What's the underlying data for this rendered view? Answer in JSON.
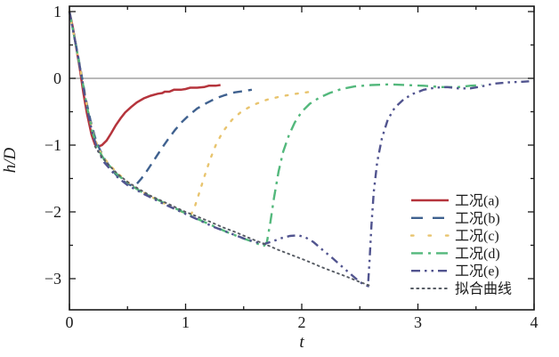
{
  "chart_data": {
    "type": "line",
    "title": "",
    "xlabel": "t",
    "ylabel": "h/D",
    "xlim": [
      0,
      4
    ],
    "ylim": [
      -3.47,
      1.08
    ],
    "grid": false,
    "zero_line": 0,
    "zero_line_color": "#909090",
    "frame_color": "#1a1a1a",
    "legend_position": "right-middle",
    "xticks": [
      {
        "value": 0,
        "label": "0"
      },
      {
        "value": 1,
        "label": "1"
      },
      {
        "value": 2,
        "label": "2"
      },
      {
        "value": 3,
        "label": "3"
      },
      {
        "value": 4,
        "label": "4"
      }
    ],
    "yticks": [
      {
        "value": 1,
        "label": "1"
      },
      {
        "value": 0,
        "label": "0"
      },
      {
        "value": -1,
        "label": "−1"
      },
      {
        "value": -2,
        "label": "−2"
      },
      {
        "value": -3,
        "label": "−3"
      }
    ],
    "xminor": [
      0.5,
      1.5,
      2.5,
      3.5
    ],
    "yminor": [
      0.5,
      -0.5,
      -1.5,
      -2.5
    ],
    "series": [
      {
        "name": "工况(a)",
        "color": "#b5343c",
        "style": "solid",
        "points": [
          [
            0,
            1.0
          ],
          [
            0.03,
            0.76
          ],
          [
            0.06,
            0.45
          ],
          [
            0.09,
            0.14
          ],
          [
            0.12,
            -0.22
          ],
          [
            0.15,
            -0.52
          ],
          [
            0.17,
            -0.68
          ],
          [
            0.19,
            -0.84
          ],
          [
            0.205,
            -0.92
          ],
          [
            0.22,
            -0.99
          ],
          [
            0.25,
            -1.02
          ],
          [
            0.28,
            -1.0
          ],
          [
            0.32,
            -0.93
          ],
          [
            0.36,
            -0.82
          ],
          [
            0.4,
            -0.7
          ],
          [
            0.44,
            -0.6
          ],
          [
            0.48,
            -0.51
          ],
          [
            0.53,
            -0.43
          ],
          [
            0.58,
            -0.36
          ],
          [
            0.64,
            -0.3
          ],
          [
            0.7,
            -0.26
          ],
          [
            0.76,
            -0.23
          ],
          [
            0.8,
            -0.22
          ],
          [
            0.82,
            -0.2
          ],
          [
            0.86,
            -0.2
          ],
          [
            0.9,
            -0.17
          ],
          [
            0.96,
            -0.17
          ],
          [
            1.0,
            -0.16
          ],
          [
            1.04,
            -0.14
          ],
          [
            1.1,
            -0.14
          ],
          [
            1.16,
            -0.13
          ],
          [
            1.2,
            -0.11
          ],
          [
            1.26,
            -0.11
          ],
          [
            1.3,
            -0.1
          ]
        ]
      },
      {
        "name": "工况(b)",
        "color": "#3f618f",
        "style": "dashed",
        "points": [
          [
            0,
            1.0
          ],
          [
            0.05,
            0.56
          ],
          [
            0.1,
            0.1
          ],
          [
            0.14,
            -0.3
          ],
          [
            0.18,
            -0.62
          ],
          [
            0.22,
            -0.88
          ],
          [
            0.26,
            -1.06
          ],
          [
            0.3,
            -1.2
          ],
          [
            0.35,
            -1.33
          ],
          [
            0.4,
            -1.44
          ],
          [
            0.45,
            -1.52
          ],
          [
            0.5,
            -1.58
          ],
          [
            0.54,
            -1.61
          ],
          [
            0.58,
            -1.58
          ],
          [
            0.62,
            -1.5
          ],
          [
            0.67,
            -1.38
          ],
          [
            0.73,
            -1.22
          ],
          [
            0.79,
            -1.06
          ],
          [
            0.85,
            -0.91
          ],
          [
            0.91,
            -0.77
          ],
          [
            0.97,
            -0.65
          ],
          [
            1.03,
            -0.55
          ],
          [
            1.1,
            -0.45
          ],
          [
            1.18,
            -0.37
          ],
          [
            1.26,
            -0.3
          ],
          [
            1.34,
            -0.25
          ],
          [
            1.42,
            -0.21
          ],
          [
            1.5,
            -0.19
          ],
          [
            1.57,
            -0.17
          ]
        ]
      },
      {
        "name": "工况(c)",
        "color": "#e8c46e",
        "style": "dotted",
        "points": [
          [
            0,
            1.0
          ],
          [
            0.05,
            0.55
          ],
          [
            0.1,
            0.08
          ],
          [
            0.15,
            -0.4
          ],
          [
            0.2,
            -0.8
          ],
          [
            0.25,
            -1.05
          ],
          [
            0.3,
            -1.2
          ],
          [
            0.4,
            -1.4
          ],
          [
            0.5,
            -1.55
          ],
          [
            0.6,
            -1.67
          ],
          [
            0.7,
            -1.77
          ],
          [
            0.8,
            -1.86
          ],
          [
            0.9,
            -1.95
          ],
          [
            1.0,
            -2.02
          ],
          [
            1.05,
            -2.03
          ],
          [
            1.08,
            -1.92
          ],
          [
            1.12,
            -1.7
          ],
          [
            1.16,
            -1.48
          ],
          [
            1.21,
            -1.22
          ],
          [
            1.26,
            -1.0
          ],
          [
            1.32,
            -0.8
          ],
          [
            1.4,
            -0.62
          ],
          [
            1.48,
            -0.5
          ],
          [
            1.58,
            -0.4
          ],
          [
            1.7,
            -0.32
          ],
          [
            1.82,
            -0.27
          ],
          [
            1.95,
            -0.23
          ],
          [
            2.08,
            -0.2
          ]
        ]
      },
      {
        "name": "工况(d)",
        "color": "#53b87c",
        "style": "dashdot",
        "points": [
          [
            0,
            1.0
          ],
          [
            0.05,
            0.55
          ],
          [
            0.1,
            0.08
          ],
          [
            0.15,
            -0.42
          ],
          [
            0.2,
            -0.82
          ],
          [
            0.25,
            -1.07
          ],
          [
            0.3,
            -1.22
          ],
          [
            0.4,
            -1.42
          ],
          [
            0.5,
            -1.57
          ],
          [
            0.62,
            -1.7
          ],
          [
            0.75,
            -1.81
          ],
          [
            0.88,
            -1.92
          ],
          [
            1.0,
            -2.02
          ],
          [
            1.12,
            -2.12
          ],
          [
            1.25,
            -2.22
          ],
          [
            1.38,
            -2.32
          ],
          [
            1.5,
            -2.4
          ],
          [
            1.6,
            -2.46
          ],
          [
            1.67,
            -2.52
          ],
          [
            1.7,
            -2.45
          ],
          [
            1.73,
            -2.15
          ],
          [
            1.76,
            -1.8
          ],
          [
            1.8,
            -1.4
          ],
          [
            1.84,
            -1.1
          ],
          [
            1.89,
            -0.85
          ],
          [
            1.94,
            -0.66
          ],
          [
            2.0,
            -0.5
          ],
          [
            2.07,
            -0.38
          ],
          [
            2.15,
            -0.29
          ],
          [
            2.24,
            -0.22
          ],
          [
            2.34,
            -0.16
          ],
          [
            2.46,
            -0.12
          ],
          [
            2.6,
            -0.1
          ],
          [
            2.75,
            -0.09
          ],
          [
            2.9,
            -0.1
          ],
          [
            3.05,
            -0.11
          ],
          [
            3.2,
            -0.13
          ],
          [
            3.35,
            -0.13
          ],
          [
            3.45,
            -0.11
          ],
          [
            3.55,
            -0.1
          ]
        ]
      },
      {
        "name": "工况(e)",
        "color": "#51548f",
        "style": "dashdotdot",
        "points": [
          [
            0,
            1.0
          ],
          [
            0.05,
            0.55
          ],
          [
            0.1,
            0.08
          ],
          [
            0.15,
            -0.44
          ],
          [
            0.2,
            -0.84
          ],
          [
            0.25,
            -1.1
          ],
          [
            0.3,
            -1.26
          ],
          [
            0.4,
            -1.46
          ],
          [
            0.5,
            -1.6
          ],
          [
            0.65,
            -1.74
          ],
          [
            0.8,
            -1.87
          ],
          [
            0.95,
            -1.99
          ],
          [
            1.1,
            -2.11
          ],
          [
            1.25,
            -2.23
          ],
          [
            1.4,
            -2.33
          ],
          [
            1.52,
            -2.41
          ],
          [
            1.62,
            -2.46
          ],
          [
            1.68,
            -2.48
          ],
          [
            1.75,
            -2.44
          ],
          [
            1.83,
            -2.39
          ],
          [
            1.9,
            -2.36
          ],
          [
            1.97,
            -2.35
          ],
          [
            2.03,
            -2.38
          ],
          [
            2.1,
            -2.45
          ],
          [
            2.18,
            -2.57
          ],
          [
            2.27,
            -2.7
          ],
          [
            2.36,
            -2.84
          ],
          [
            2.44,
            -2.96
          ],
          [
            2.5,
            -3.05
          ],
          [
            2.55,
            -3.1
          ],
          [
            2.57,
            -3.11
          ],
          [
            2.585,
            -2.7
          ],
          [
            2.6,
            -2.2
          ],
          [
            2.62,
            -1.7
          ],
          [
            2.65,
            -1.25
          ],
          [
            2.69,
            -0.9
          ],
          [
            2.74,
            -0.62
          ],
          [
            2.8,
            -0.44
          ],
          [
            2.88,
            -0.31
          ],
          [
            2.96,
            -0.23
          ],
          [
            3.05,
            -0.17
          ],
          [
            3.15,
            -0.14
          ],
          [
            3.25,
            -0.13
          ],
          [
            3.35,
            -0.15
          ],
          [
            3.45,
            -0.15
          ],
          [
            3.55,
            -0.12
          ],
          [
            3.65,
            -0.08
          ],
          [
            3.78,
            -0.06
          ],
          [
            3.9,
            -0.05
          ],
          [
            4.0,
            -0.04
          ]
        ]
      },
      {
        "name": "拟合曲线",
        "color": "#565b63",
        "style": "finedot",
        "points": [
          [
            0.22,
            -1.02
          ],
          [
            0.28,
            -1.18
          ],
          [
            0.35,
            -1.32
          ],
          [
            0.42,
            -1.44
          ],
          [
            0.5,
            -1.55
          ],
          [
            0.6,
            -1.66
          ],
          [
            0.7,
            -1.76
          ],
          [
            0.8,
            -1.84
          ],
          [
            0.9,
            -1.92
          ],
          [
            1.0,
            -2.0
          ],
          [
            1.1,
            -2.07
          ],
          [
            1.2,
            -2.14
          ],
          [
            1.32,
            -2.23
          ],
          [
            1.44,
            -2.31
          ],
          [
            1.56,
            -2.4
          ],
          [
            1.68,
            -2.48
          ],
          [
            1.8,
            -2.57
          ],
          [
            1.92,
            -2.65
          ],
          [
            2.04,
            -2.73
          ],
          [
            2.16,
            -2.82
          ],
          [
            2.28,
            -2.9
          ],
          [
            2.4,
            -2.98
          ],
          [
            2.5,
            -3.05
          ],
          [
            2.58,
            -3.1
          ]
        ]
      }
    ]
  }
}
